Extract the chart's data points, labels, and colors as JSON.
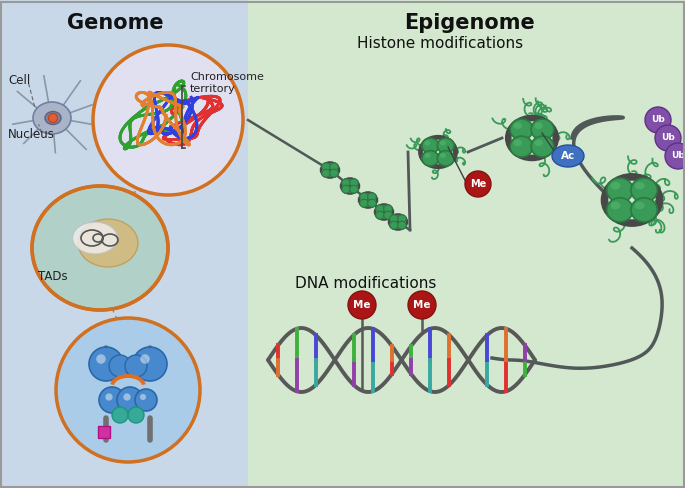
{
  "left_bg_color": "#c8d8e8",
  "right_bg_color": "#d4e8d0",
  "border_color": "#888888",
  "title_genome": "Genome",
  "title_epigenome": "Epigenome",
  "label_cell": "Cell",
  "label_nucleus": "Nucleus",
  "label_chromosome": "Chromosome\nterritory",
  "label_tads": "TADs",
  "label_histone": "Histone modifications",
  "label_dna": "DNA modifications",
  "label_me": "Me",
  "label_ac": "Ac",
  "label_ub": "Ub",
  "green_dark": "#2a7a40",
  "green_medium": "#3a9a58",
  "green_light": "#55bb70",
  "orange_circle": "#d07020",
  "blue_circle": "#5080c0",
  "teal_circle": "#50b8b0",
  "pink_diamond": "#d030a0",
  "red_me": "#aa1515",
  "blue_ac": "#4070c0",
  "purple_ub": "#8050a8",
  "gray_line": "#606060",
  "cell_color": "#909090",
  "fig_width": 6.85,
  "fig_height": 4.88
}
